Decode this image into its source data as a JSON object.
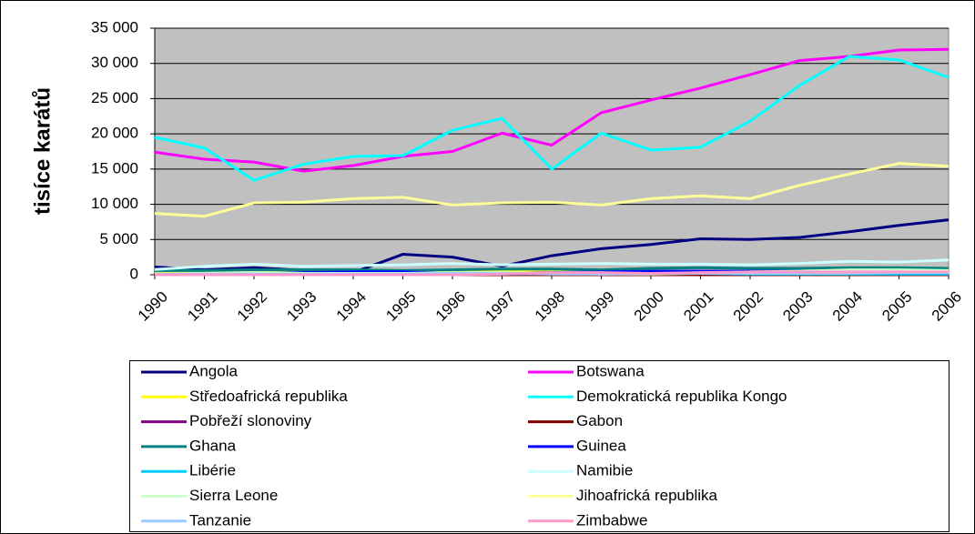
{
  "chart_data": {
    "type": "line",
    "y_label": "tisíce karátů",
    "categories": [
      "1990",
      "1991",
      "1992",
      "1993",
      "1994",
      "1995",
      "1996",
      "1997",
      "1998",
      "1999",
      "2000",
      "2001",
      "2002",
      "2003",
      "2004",
      "2005",
      "2006"
    ],
    "ylim": [
      0,
      35000
    ],
    "yticks": [
      0,
      {
        "value": 5000,
        "label": "5 000"
      },
      {
        "value": 10000,
        "label": "10 000"
      },
      {
        "value": 15000,
        "label": "15 000"
      },
      {
        "value": 20000,
        "label": "20 000"
      },
      {
        "value": 25000,
        "label": "25 000"
      },
      {
        "value": 30000,
        "label": "30 000"
      },
      {
        "value": 35000,
        "label": "35 000"
      }
    ],
    "grid": true,
    "series": [
      {
        "name": "Angola",
        "color": "#000080",
        "values": [
          1100,
          700,
          1000,
          600,
          300,
          2900,
          2500,
          1200,
          2700,
          3700,
          4300,
          5100,
          5000,
          5300,
          6100,
          7000,
          7800
        ]
      },
      {
        "name": "Botswana",
        "color": "#ff00ff",
        "values": [
          17400,
          16400,
          16000,
          14700,
          15500,
          16800,
          17500,
          20100,
          18400,
          23000,
          24800,
          26500,
          28400,
          30400,
          31000,
          31900,
          32000
        ]
      },
      {
        "name": "Středoafrická republika",
        "color": "#ffff00",
        "values": [
          400,
          400,
          400,
          500,
          500,
          500,
          500,
          500,
          400,
          400,
          400,
          400,
          400,
          400,
          300,
          300,
          400
        ]
      },
      {
        "name": "Demokratická republika Kongo",
        "color": "#00ffff",
        "values": [
          19500,
          18000,
          13400,
          15700,
          16800,
          16900,
          20500,
          22200,
          15000,
          20100,
          17700,
          18100,
          21800,
          26900,
          31000,
          30500,
          28000
        ]
      },
      {
        "name": "Pobřeží slonoviny",
        "color": "#800080",
        "values": [
          50,
          50,
          50,
          50,
          50,
          50,
          50,
          50,
          50,
          50,
          50,
          50,
          50,
          50,
          50,
          50,
          50
        ]
      },
      {
        "name": "Gabon",
        "color": "#800000",
        "values": [
          0,
          0,
          0,
          0,
          0,
          0,
          0,
          0,
          0,
          0,
          0,
          0,
          0,
          0,
          0,
          0,
          0
        ]
      },
      {
        "name": "Ghana",
        "color": "#008080",
        "values": [
          600,
          600,
          700,
          700,
          700,
          600,
          700,
          800,
          800,
          700,
          900,
          1000,
          900,
          900,
          1000,
          1000,
          900
        ]
      },
      {
        "name": "Guinea",
        "color": "#0000ff",
        "values": [
          100,
          100,
          200,
          300,
          400,
          400,
          200,
          200,
          300,
          400,
          500,
          500,
          500,
          500,
          600,
          500,
          500
        ]
      },
      {
        "name": "Libérie",
        "color": "#00ccff",
        "values": [
          100,
          100,
          100,
          100,
          100,
          100,
          100,
          100,
          200,
          200,
          200,
          200,
          100,
          100,
          100,
          100,
          100
        ]
      },
      {
        "name": "Namibie",
        "color": "#ccffff",
        "values": [
          750,
          1200,
          1500,
          1200,
          1300,
          1400,
          1600,
          1400,
          1500,
          1600,
          1500,
          1500,
          1400,
          1600,
          1900,
          1800,
          2100
        ]
      },
      {
        "name": "Sierra Leone",
        "color": "#ccffcc",
        "values": [
          100,
          200,
          300,
          200,
          200,
          200,
          300,
          300,
          200,
          100,
          100,
          200,
          400,
          500,
          700,
          700,
          600
        ]
      },
      {
        "name": "Jihoafrická republika",
        "color": "#ffff99",
        "values": [
          8700,
          8300,
          10200,
          10300,
          10800,
          11000,
          9900,
          10200,
          10300,
          9900,
          10800,
          11200,
          10800,
          12700,
          14300,
          15800,
          15400
        ]
      },
      {
        "name": "Tanzanie",
        "color": "#99ccff",
        "values": [
          100,
          100,
          100,
          100,
          100,
          100,
          200,
          200,
          100,
          100,
          200,
          200,
          200,
          200,
          200,
          300,
          300
        ]
      },
      {
        "name": "Zimbabwe",
        "color": "#ff99cc",
        "values": [
          0,
          0,
          0,
          0,
          0,
          0,
          0,
          100,
          300,
          300,
          200,
          300,
          400,
          400,
          400,
          400,
          400
        ]
      }
    ]
  }
}
